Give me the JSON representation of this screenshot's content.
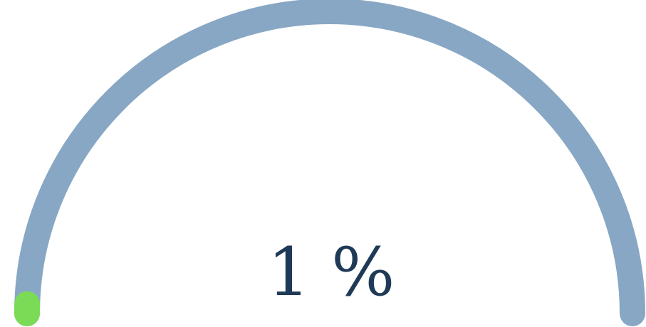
{
  "gauge": {
    "value": 1,
    "min": 0,
    "max": 100,
    "unit": "%",
    "label": "1 %",
    "colors": {
      "track": "#87a7c4",
      "progress": "#7cdb56",
      "text": "#1f3a56"
    }
  }
}
